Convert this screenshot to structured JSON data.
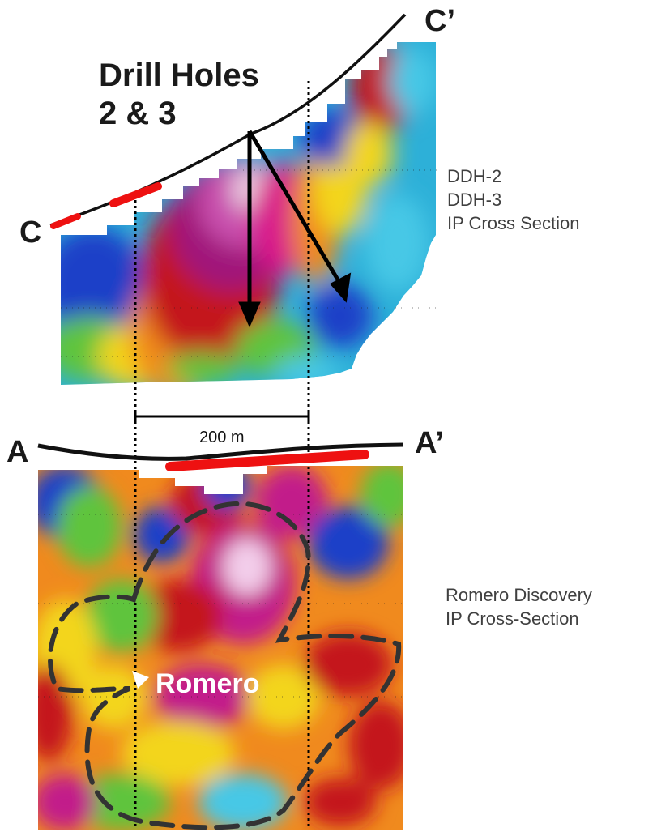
{
  "labels": {
    "c": "C",
    "c_prime": "C’",
    "a": "A",
    "a_prime": "A’",
    "title_line1": "Drill Holes",
    "title_line2": "2 & 3",
    "ddh2": "DDH-2",
    "ddh3": "DDH-3",
    "ip_cross_section": "IP Cross Section",
    "romero_discovery": "Romero Discovery",
    "ip_cross_section_hyphen": "IP Cross-Section",
    "scale_bar": "200 m",
    "romero": "Romero"
  },
  "colors": {
    "ip_high": "#c21a8a",
    "ip_red": "#c4151c",
    "ip_orange": "#f08a1e",
    "ip_yellow": "#f3d51f",
    "ip_green": "#5ec43c",
    "ip_cyan": "#46c8e6",
    "ip_blue": "#1b3fc8",
    "surface_line": "#111111",
    "mineralized_zone": "#ee1111",
    "outline_dash": "#333333"
  }
}
